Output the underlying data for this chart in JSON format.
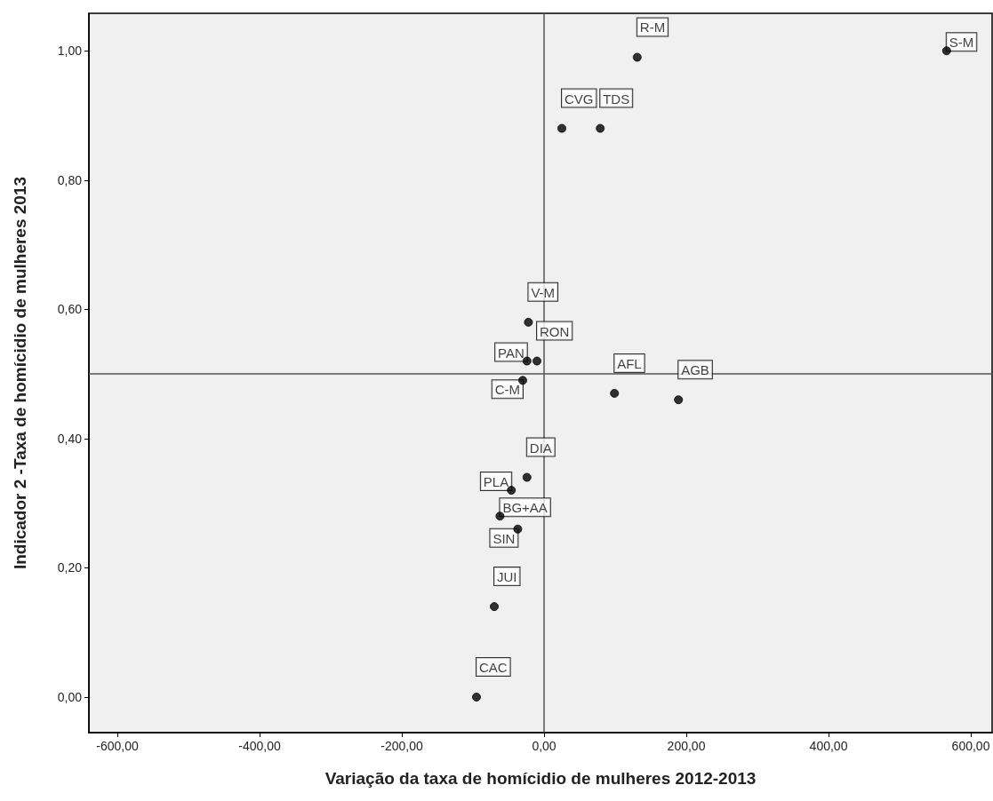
{
  "chart_data": {
    "type": "scatter",
    "xlabel": "Variação da taxa de homícidio de mulheres 2012-2013",
    "ylabel": "Indicador 2 -Taxa de homícidio de mulheres 2013",
    "x": [
      566,
      131,
      25,
      79,
      -22,
      -24,
      -10,
      -30,
      99,
      189,
      -24,
      -46,
      -62,
      -37,
      -70,
      -95
    ],
    "series": [
      {
        "color": "#000000",
        "values": [
          1.0,
          0.99,
          0.88,
          0.88,
          0.58,
          0.52,
          0.52,
          0.49,
          0.47,
          0.46,
          0.34,
          0.32,
          0.28,
          0.26,
          0.14,
          0.0
        ]
      }
    ],
    "annotations": [
      {
        "text": "S-M",
        "x": 566,
        "y": 1.0
      },
      {
        "text": "R-M",
        "x": 131,
        "y": 0.99
      },
      {
        "text": "CVG",
        "x": 25,
        "y": 0.88
      },
      {
        "text": "TDS",
        "x": 79,
        "y": 0.88
      },
      {
        "text": "V-M",
        "x": -22,
        "y": 0.58
      },
      {
        "text": "PAN",
        "x": -24,
        "y": 0.52
      },
      {
        "text": "RON",
        "x": -10,
        "y": 0.52
      },
      {
        "text": "C-M",
        "x": -30,
        "y": 0.49
      },
      {
        "text": "AFL",
        "x": 99,
        "y": 0.47
      },
      {
        "text": "AGB",
        "x": 189,
        "y": 0.46
      },
      {
        "text": "DIA",
        "x": -24,
        "y": 0.34
      },
      {
        "text": "PLA",
        "x": -46,
        "y": 0.32
      },
      {
        "text": "BG+AA",
        "x": -62,
        "y": 0.28
      },
      {
        "text": "SIN",
        "x": -37,
        "y": 0.26
      },
      {
        "text": "JUI",
        "x": -70,
        "y": 0.14
      },
      {
        "text": "CAC",
        "x": -95,
        "y": 0.0
      }
    ],
    "ref_lines": [
      {
        "axis": "x",
        "value": 0,
        "color": "#555555"
      },
      {
        "axis": "y",
        "value": 0.5,
        "color": "#555555"
      }
    ],
    "xlim": [
      -640,
      630
    ],
    "xticks": [
      {
        "value": -600,
        "label": "-600,00"
      },
      {
        "value": -400,
        "label": "-400,00"
      },
      {
        "value": -200,
        "label": "-200,00"
      },
      {
        "value": 0,
        "label": "0,00"
      },
      {
        "value": 200,
        "label": "200,00"
      },
      {
        "value": 400,
        "label": "400,00"
      },
      {
        "value": 600,
        "label": "600,00"
      }
    ],
    "ylim": [
      -0.055,
      1.058
    ],
    "yticks": [
      {
        "value": 0,
        "label": "0,00"
      },
      {
        "value": 0.2,
        "label": "0,20"
      },
      {
        "value": 0.4,
        "label": "0,40"
      },
      {
        "value": 0.6,
        "label": "0,60"
      },
      {
        "value": 0.8,
        "label": "0,80"
      },
      {
        "value": 1.0,
        "label": "1,00"
      }
    ],
    "grid": false,
    "marker": "circle"
  }
}
